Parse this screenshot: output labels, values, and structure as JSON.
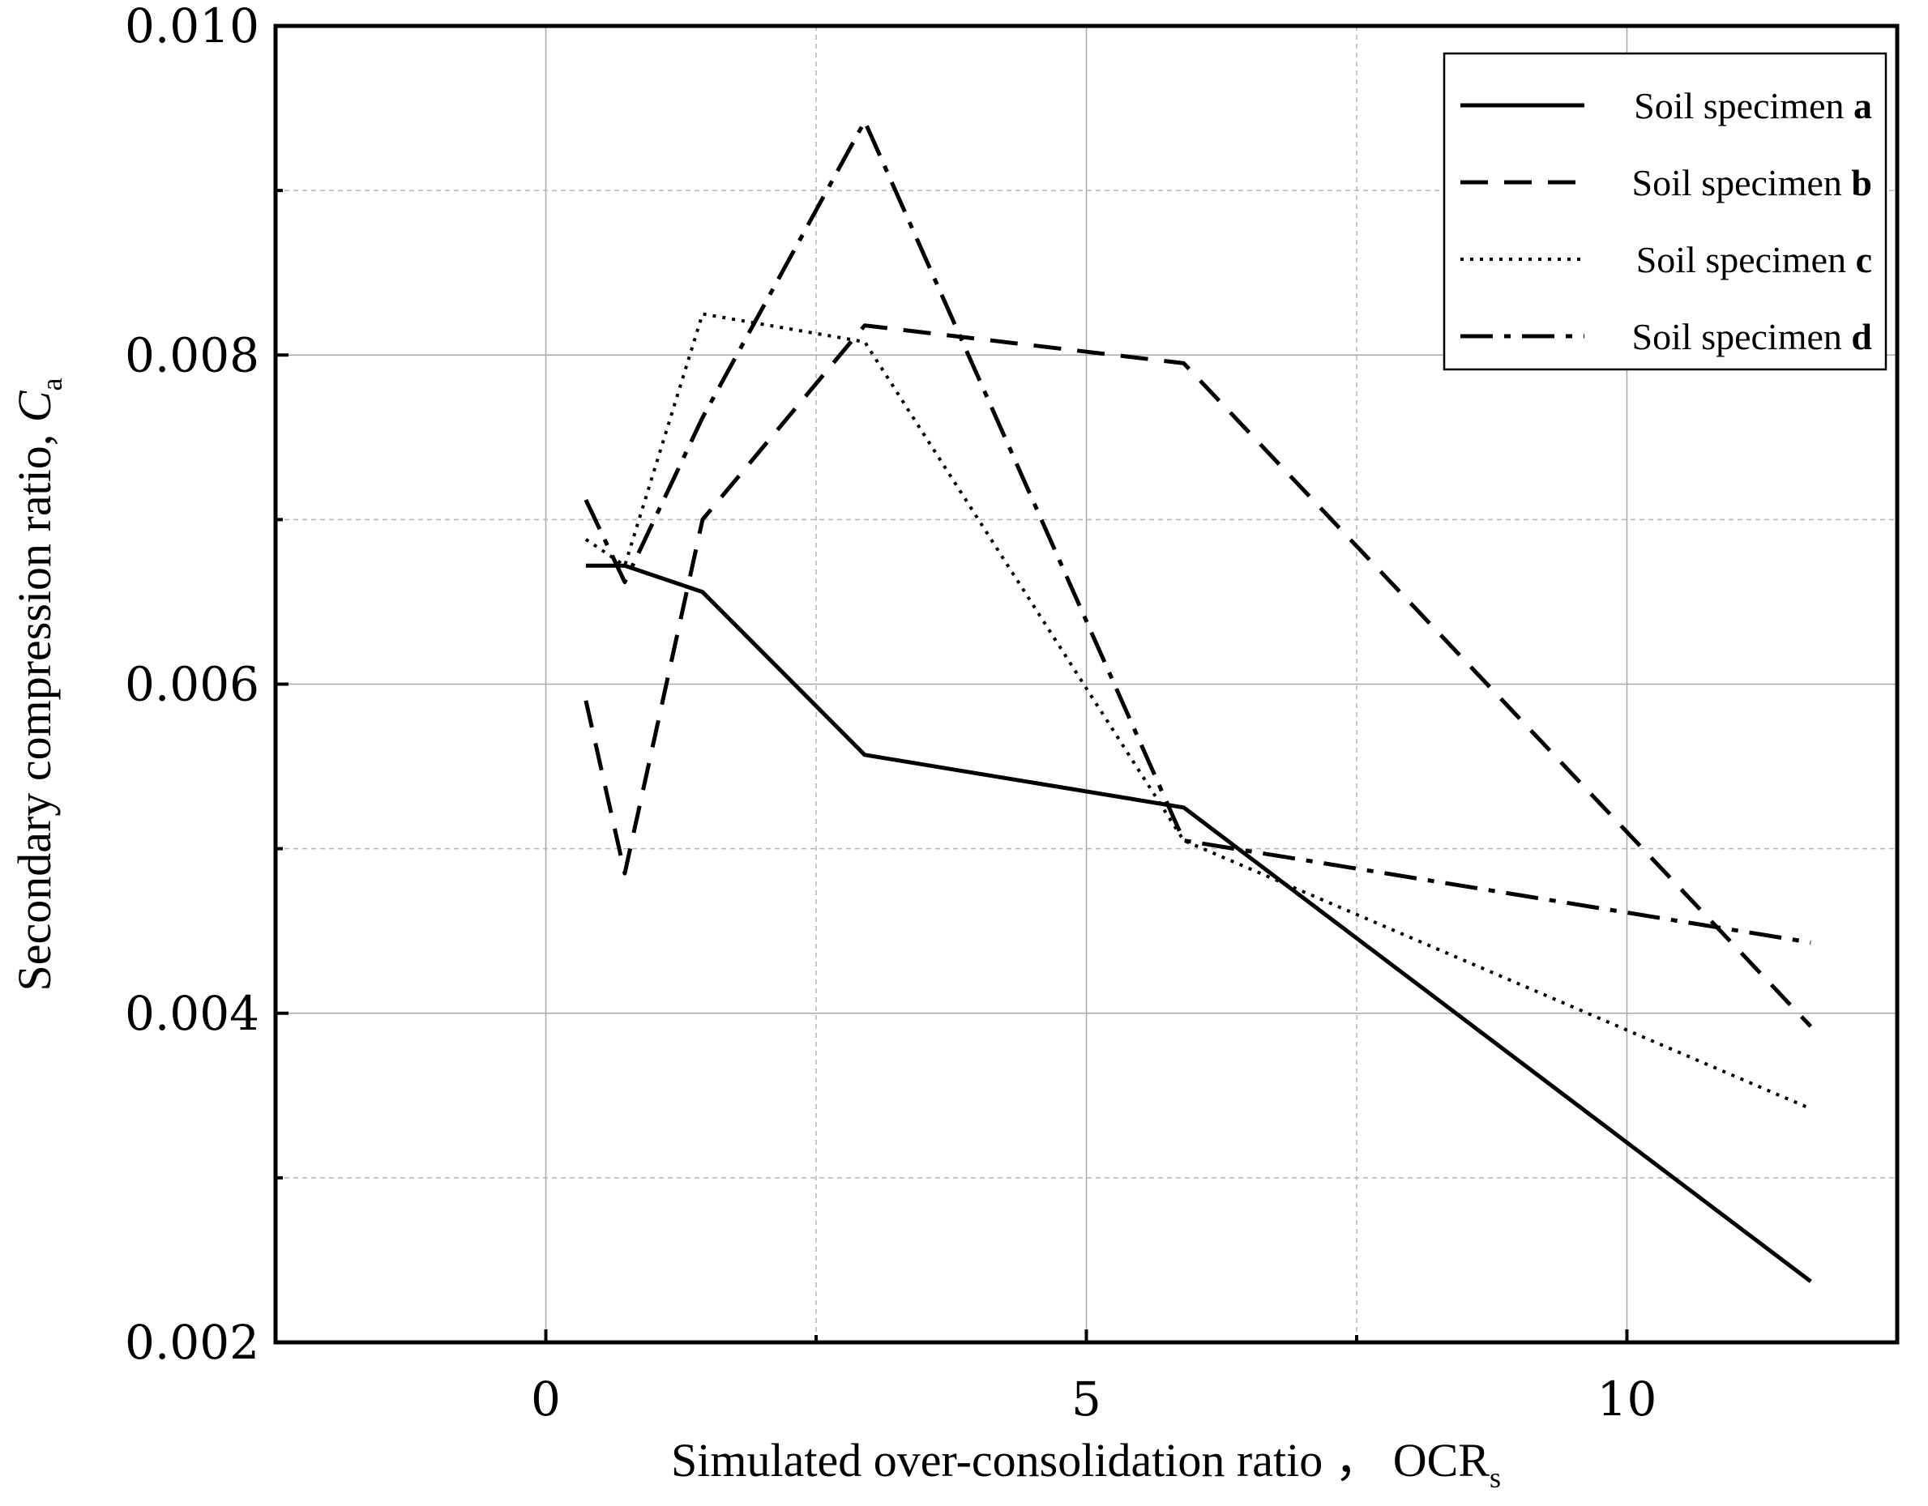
{
  "chart_data": {
    "type": "line",
    "xlabel": "Simulated over-consolidation ratio ，",
    "xlabel_symbol": "OCR",
    "xlabel_subscript": "s",
    "ylabel": "Secondary compression ratio, ",
    "ylabel_symbol": "C",
    "ylabel_subscript": "a",
    "xlim": [
      -2.5,
      12.5
    ],
    "ylim": [
      0.002,
      0.01
    ],
    "x_ticks": [
      0,
      5,
      10
    ],
    "x_tick_labels": [
      "0",
      "5",
      "10"
    ],
    "x_minor_ticks": [
      2.5,
      7.5
    ],
    "y_ticks": [
      0.002,
      0.004,
      0.006,
      0.008,
      0.01
    ],
    "y_tick_labels": [
      "0.002",
      "0.004",
      "0.006",
      "0.008",
      "0.010"
    ],
    "y_minor_ticks": [
      0.003,
      0.005,
      0.007,
      0.009
    ],
    "grid": true,
    "legend_position": "top-right",
    "series": [
      {
        "name": "Soil specimen ",
        "name_bold": "a",
        "style": "solid",
        "x": [
          0.37,
          0.73,
          1.45,
          2.95,
          5.9,
          11.7
        ],
        "y": [
          0.00672,
          0.00672,
          0.00656,
          0.00557,
          0.00525,
          0.00237
        ]
      },
      {
        "name": "Soil specimen ",
        "name_bold": "b",
        "style": "dashed",
        "x": [
          0.37,
          0.73,
          1.45,
          2.95,
          5.9,
          11.7
        ],
        "y": [
          0.0059,
          0.00485,
          0.007,
          0.00818,
          0.00795,
          0.00392
        ]
      },
      {
        "name": "Soil specimen ",
        "name_bold": "c",
        "style": "dotted",
        "x": [
          0.37,
          0.73,
          1.45,
          2.95,
          5.9,
          11.7
        ],
        "y": [
          0.00688,
          0.00672,
          0.00825,
          0.00808,
          0.00505,
          0.00342
        ]
      },
      {
        "name": "Soil specimen ",
        "name_bold": "d",
        "style": "dashdot",
        "x": [
          0.37,
          0.73,
          1.45,
          2.95,
          5.9,
          11.7
        ],
        "y": [
          0.00712,
          0.00662,
          0.00762,
          0.00942,
          0.00505,
          0.00443
        ]
      }
    ]
  }
}
